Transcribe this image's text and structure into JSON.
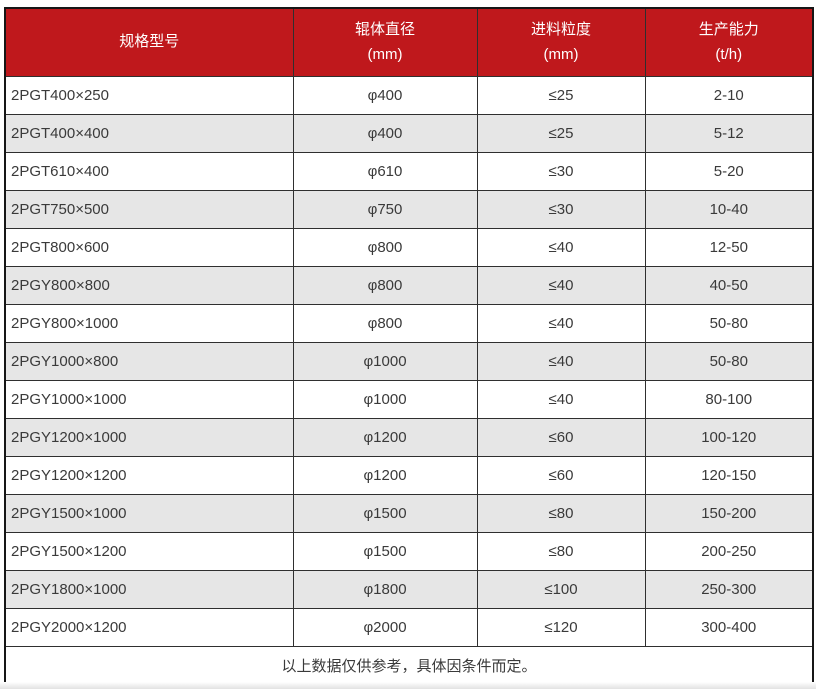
{
  "table": {
    "columns": [
      {
        "label": "规格型号",
        "unit": ""
      },
      {
        "label": "辊体直径",
        "unit": "(mm)"
      },
      {
        "label": "进料粒度",
        "unit": "(mm)"
      },
      {
        "label": "生产能力",
        "unit": "(t/h)"
      }
    ],
    "rows": [
      [
        "2PGT400×250",
        "φ400",
        "≤25",
        "2-10"
      ],
      [
        "2PGT400×400",
        "φ400",
        "≤25",
        "5-12"
      ],
      [
        "2PGT610×400",
        "φ610",
        "≤30",
        "5-20"
      ],
      [
        "2PGT750×500",
        "φ750",
        "≤30",
        "10-40"
      ],
      [
        "2PGT800×600",
        "φ800",
        "≤40",
        "12-50"
      ],
      [
        "2PGY800×800",
        "φ800",
        "≤40",
        "40-50"
      ],
      [
        "2PGY800×1000",
        "φ800",
        "≤40",
        "50-80"
      ],
      [
        "2PGY1000×800",
        "φ1000",
        "≤40",
        "50-80"
      ],
      [
        "2PGY1000×1000",
        "φ1000",
        "≤40",
        "80-100"
      ],
      [
        "2PGY1200×1000",
        "φ1200",
        "≤60",
        "100-120"
      ],
      [
        "2PGY1200×1200",
        "φ1200",
        "≤60",
        "120-150"
      ],
      [
        "2PGY1500×1000",
        "φ1500",
        "≤80",
        "150-200"
      ],
      [
        "2PGY1500×1200",
        "φ1500",
        "≤80",
        "200-250"
      ],
      [
        "2PGY1800×1000",
        "φ1800",
        "≤100",
        "250-300"
      ],
      [
        "2PGY2000×1200",
        "φ2000",
        "≤120",
        "300-400"
      ]
    ],
    "footer_note": "以上数据仅供参考，具体因条件而定。"
  },
  "colors": {
    "header_bg": "#bf181c",
    "header_text": "#ffffff",
    "row_alt_bg": "#e6e6e6",
    "row_bg": "#ffffff",
    "border_inner": "#2f2f2f",
    "border_outer": "#161616",
    "text": "#3a3a3a"
  }
}
